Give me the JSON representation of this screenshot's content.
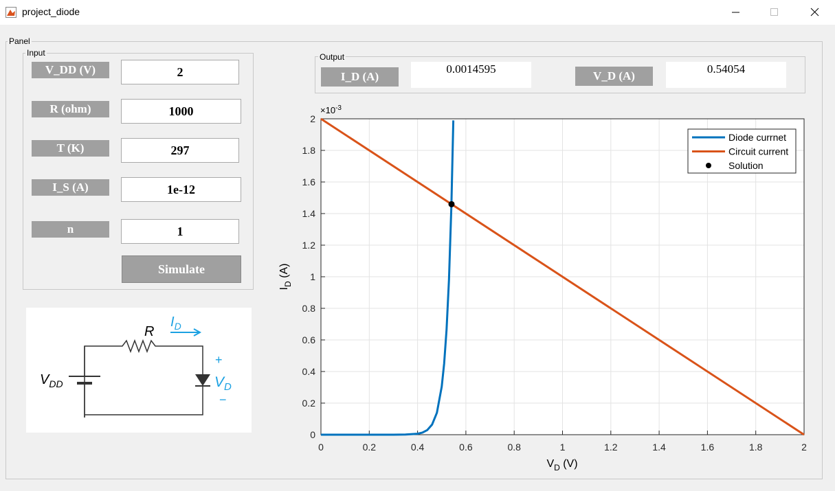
{
  "window": {
    "title": "project_diode"
  },
  "panel": {
    "title": "Panel"
  },
  "input": {
    "title": "Input",
    "fields": [
      {
        "label": "V_DD (V)",
        "value": "2"
      },
      {
        "label": "R (ohm)",
        "value": "1000"
      },
      {
        "label": "T (K)",
        "value": "297"
      },
      {
        "label": "I_S (A)",
        "value": "1e-12"
      },
      {
        "label": "n",
        "value": "1"
      }
    ],
    "button": "Simulate"
  },
  "output": {
    "title": "Output",
    "fields": [
      {
        "label": "I_D (A)",
        "value": "0.0014595"
      },
      {
        "label": "V_D (A)",
        "value": "0.54054"
      }
    ]
  },
  "circuit": {
    "resistor": "R",
    "current": [
      "I",
      "D"
    ],
    "plus": "+",
    "vd": [
      "V",
      "D"
    ],
    "minus": "−",
    "vdd": [
      "V",
      "DD"
    ]
  },
  "chart_data": {
    "type": "line",
    "xlabel": [
      "V",
      "D",
      " (V)"
    ],
    "ylabel": [
      "I",
      "D",
      " (A)"
    ],
    "yexponent": [
      "×10",
      "-3"
    ],
    "xlim": [
      0,
      2
    ],
    "ylim": [
      0,
      2
    ],
    "xticks": [
      0,
      0.2,
      0.4,
      0.6,
      0.8,
      1,
      1.2,
      1.4,
      1.6,
      1.8,
      2
    ],
    "yticks": [
      0,
      0.2,
      0.4,
      0.6,
      0.8,
      1,
      1.2,
      1.4,
      1.6,
      1.8,
      2
    ],
    "grid": true,
    "legend": "upper right",
    "series": [
      {
        "name": "Diode currnet",
        "color": "#0072bd",
        "style": "line",
        "x": [
          0,
          0.1,
          0.2,
          0.3,
          0.35,
          0.4,
          0.42,
          0.44,
          0.46,
          0.48,
          0.5,
          0.51,
          0.52,
          0.53,
          0.54,
          0.548
        ],
        "values": [
          0,
          0,
          0,
          0,
          0.001,
          0.006,
          0.013,
          0.029,
          0.064,
          0.139,
          0.304,
          0.45,
          0.665,
          0.98,
          1.45,
          1.99
        ]
      },
      {
        "name": "Circuit current",
        "color": "#d95319",
        "style": "line",
        "x": [
          0,
          2
        ],
        "values": [
          2,
          0
        ]
      },
      {
        "name": "Solution",
        "color": "#000000",
        "style": "marker",
        "x": [
          0.54054
        ],
        "values": [
          1.4595
        ]
      }
    ]
  }
}
